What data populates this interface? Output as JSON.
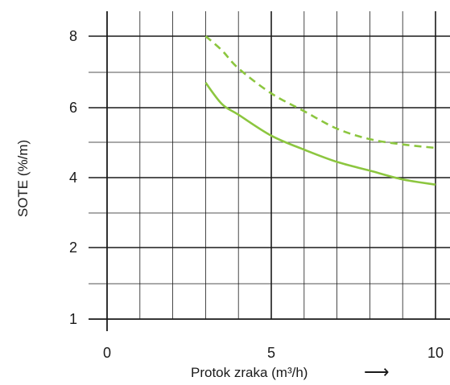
{
  "chart_data": {
    "type": "line",
    "title": "",
    "xlabel": "Protok zraka (m³/h)",
    "xlabel_arrow": "⟶",
    "ylabel": "SOTE (%/m)",
    "xlim": [
      0,
      10
    ],
    "x_ticks": [
      "0",
      "5",
      "10"
    ],
    "y_ticks": [
      "1",
      "2",
      "4",
      "6",
      "8"
    ],
    "grid": true,
    "series": [
      {
        "style": "dashed",
        "color": "#8cc63f",
        "x": [
          3.0,
          3.5,
          4.0,
          5.0,
          6.0,
          7.0,
          8.0,
          9.0,
          10.0
        ],
        "y": [
          8.0,
          7.6,
          7.1,
          6.4,
          5.9,
          5.4,
          5.1,
          4.95,
          4.85
        ]
      },
      {
        "style": "solid",
        "color": "#8cc63f",
        "x": [
          3.0,
          3.5,
          4.0,
          5.0,
          6.0,
          7.0,
          8.0,
          9.0,
          10.0
        ],
        "y": [
          6.7,
          6.1,
          5.8,
          5.2,
          4.8,
          4.45,
          4.2,
          3.95,
          3.8
        ]
      }
    ]
  }
}
